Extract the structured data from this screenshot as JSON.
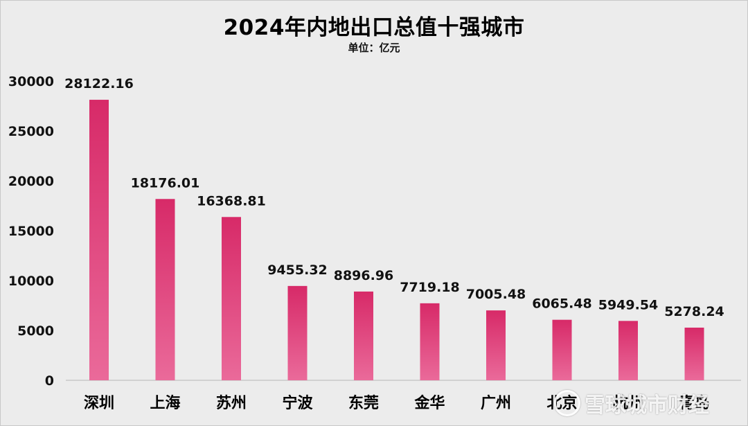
{
  "chart_data": {
    "type": "bar",
    "title": "2024年内地出口总值十强城市",
    "subtitle": "单位：亿元",
    "categories": [
      "深圳",
      "上海",
      "苏州",
      "宁波",
      "东莞",
      "金华",
      "广州",
      "北京",
      "杭州",
      "青岛"
    ],
    "values": [
      28122.16,
      18176.01,
      16368.81,
      9455.32,
      8896.96,
      7719.18,
      7005.48,
      6065.48,
      5949.54,
      5278.24
    ],
    "value_labels": [
      "28122.16",
      "18176.01",
      "16368.81",
      "9455.32",
      "8896.96",
      "7719.18",
      "7005.48",
      "6065.48",
      "5949.54",
      "5278.24"
    ],
    "yticks": [
      "0",
      "5000",
      "10000",
      "15000",
      "20000",
      "25000",
      "30000"
    ],
    "ylim": [
      0,
      30000
    ],
    "grid": false,
    "colors": {
      "bar_top": "#d72a68",
      "bar_bottom": "#ea6a9a",
      "axis": "#c8c8c8",
      "background": "#ececec"
    }
  },
  "watermark": {
    "text": "雪球城市财经"
  }
}
